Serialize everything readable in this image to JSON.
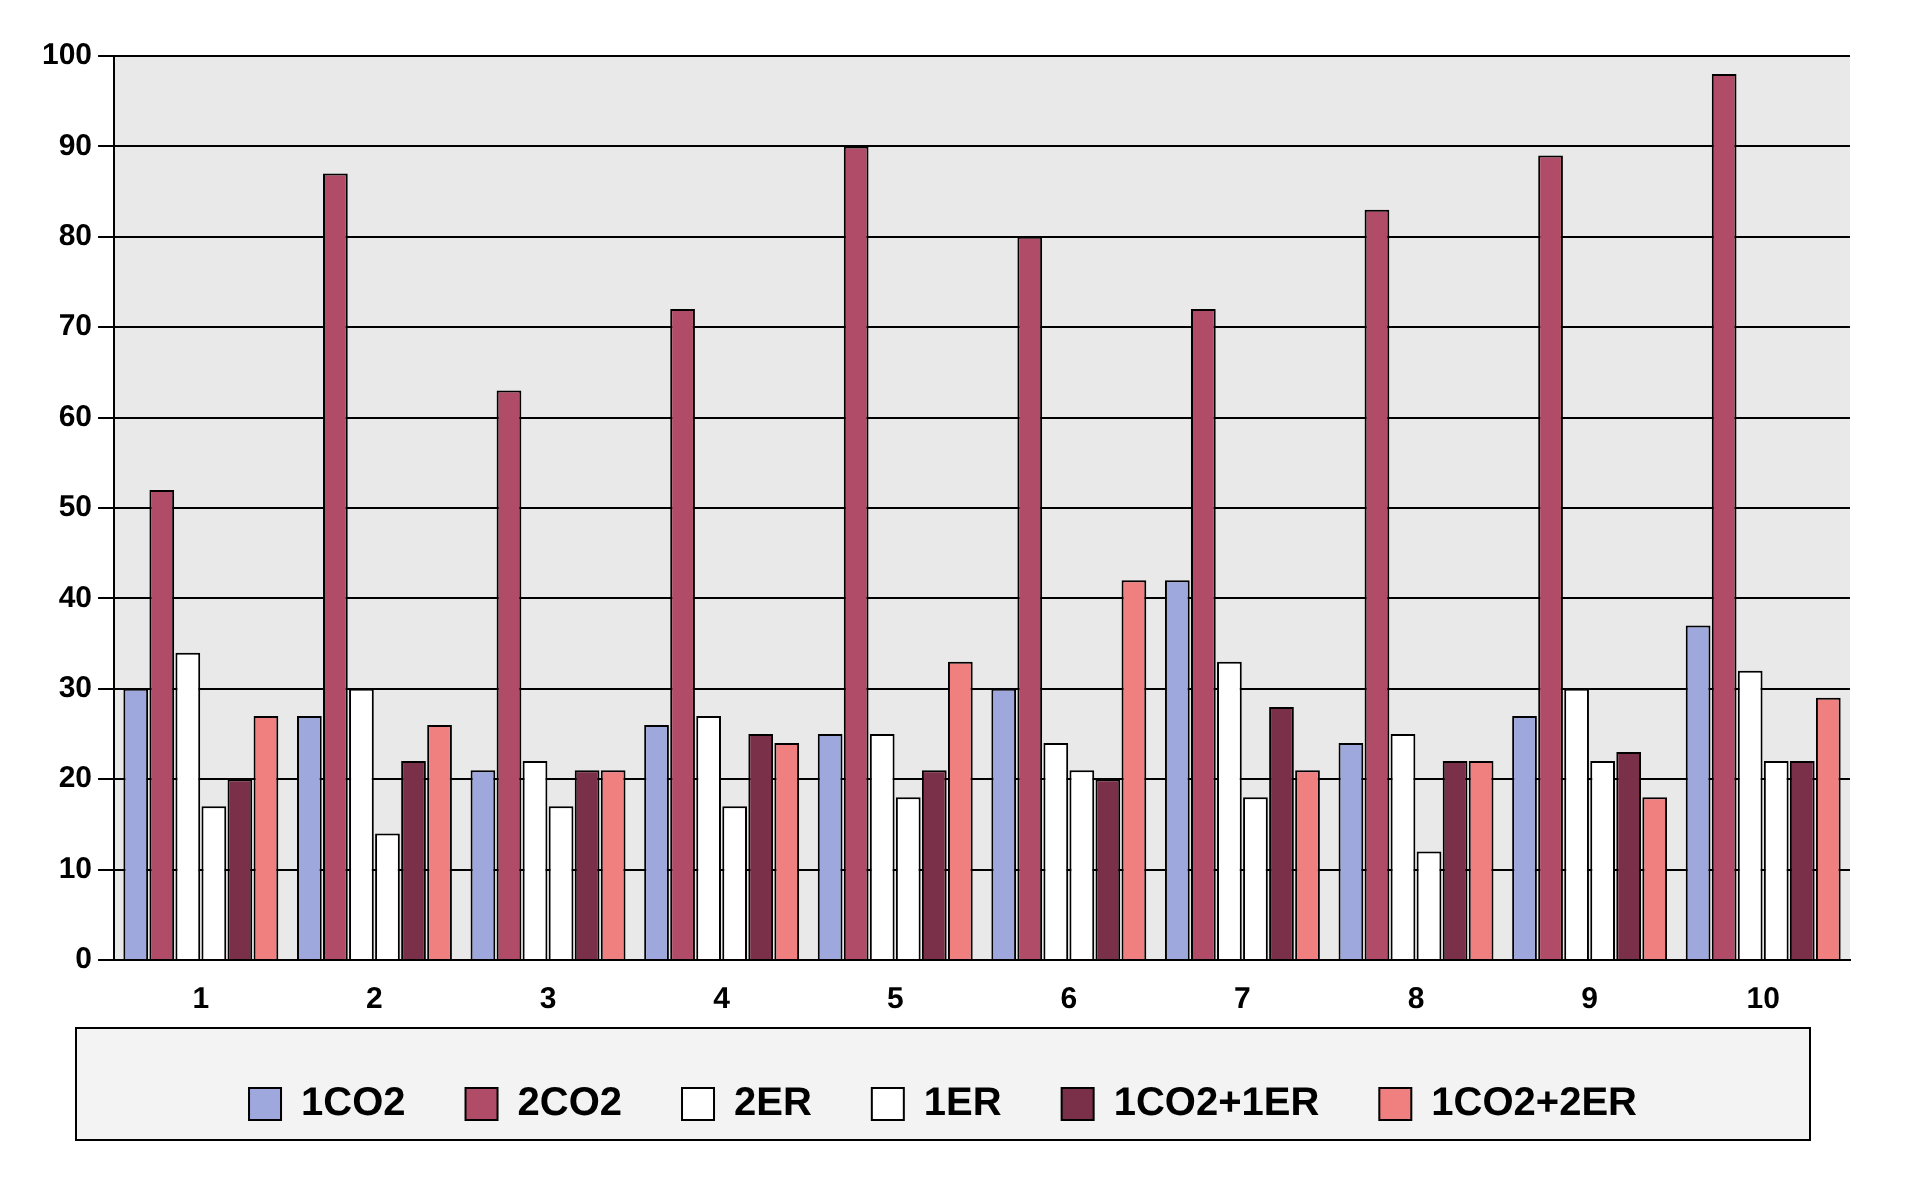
{
  "chart_data": {
    "type": "bar",
    "categories": [
      "1",
      "2",
      "3",
      "4",
      "5",
      "6",
      "7",
      "8",
      "9",
      "10"
    ],
    "series": [
      {
        "name": "1CO2",
        "color": "#9ea8dc",
        "values": [
          30,
          27,
          21,
          26,
          25,
          30,
          42,
          24,
          27,
          37
        ]
      },
      {
        "name": "2CO2",
        "color": "#b04c68",
        "values": [
          52,
          87,
          63,
          72,
          90,
          80,
          72,
          83,
          89,
          98
        ]
      },
      {
        "name": "2ER",
        "color": "#ffffff",
        "values": [
          34,
          30,
          22,
          27,
          25,
          24,
          33,
          25,
          30,
          32
        ]
      },
      {
        "name": "1ER",
        "color": "#ffffff",
        "values": [
          17,
          14,
          17,
          17,
          18,
          21,
          18,
          12,
          22,
          22
        ]
      },
      {
        "name": "1CO2+1ER",
        "color": "#7a3048",
        "values": [
          20,
          22,
          21,
          25,
          21,
          20,
          28,
          22,
          23,
          22
        ]
      },
      {
        "name": "1CO2+2ER",
        "color": "#f08080",
        "values": [
          27,
          26,
          21,
          24,
          33,
          42,
          21,
          22,
          18,
          29
        ]
      }
    ],
    "ylim": [
      0,
      100
    ],
    "yticks": [
      0,
      10,
      20,
      30,
      40,
      50,
      60,
      70,
      80,
      90,
      100
    ],
    "grid": "y",
    "legend": "bottom"
  }
}
